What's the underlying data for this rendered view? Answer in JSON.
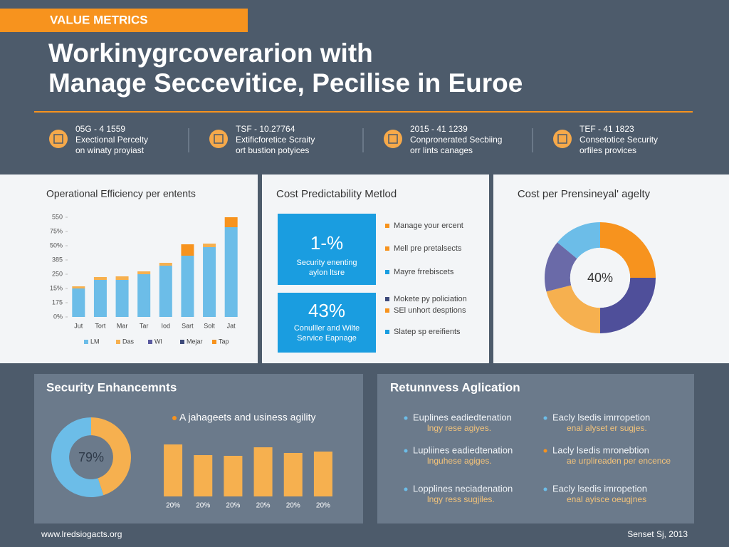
{
  "header": {
    "tag": "VALUE METRICS",
    "title": [
      "Workinygrcoverarion with",
      "Manage Seccevitice, Pecilise in Euroe"
    ]
  },
  "stats": [
    {
      "lines": [
        "05G - 4 1559",
        "Exectional Percelty",
        "on winaty proyiast"
      ]
    },
    {
      "lines": [
        "TSF - 10.27764",
        "Extificforetice Scraity",
        "ort bustion potyices"
      ]
    },
    {
      "lines": [
        "2015 - 41 1239",
        "Conpronerated Secbiing",
        "orr lints canages"
      ]
    },
    {
      "lines": [
        "TEF - 41 1823",
        "Consetotice Security",
        "orfiles provices"
      ]
    }
  ],
  "chart_data": [
    {
      "type": "bar",
      "stacked": true,
      "title": "Operational Efficiency per entents",
      "categories": [
        "Jut",
        "Tort",
        "Mar",
        "Tar",
        "Iod",
        "Sart",
        "Solt",
        "Jat"
      ],
      "ylim": [
        0,
        7.5
      ],
      "yticks": [
        {
          "value": 0,
          "label": "0%"
        },
        {
          "value": 1,
          "label": "175"
        },
        {
          "value": 2,
          "label": "15%"
        },
        {
          "value": 3,
          "label": "250"
        },
        {
          "value": 4,
          "label": "385"
        },
        {
          "value": 5,
          "label": "50%"
        },
        {
          "value": 6,
          "label": "75%"
        },
        {
          "value": 7,
          "label": "550"
        }
      ],
      "series": [
        {
          "name": "LM",
          "color": "#6cbde8",
          "values": [
            2.0,
            2.6,
            2.6,
            3.0,
            3.6,
            4.3,
            4.9,
            6.3
          ]
        },
        {
          "name": "Das",
          "color": "#f6b04f",
          "values": [
            0.15,
            0.2,
            0.25,
            0.2,
            0.2,
            null,
            0.25,
            null
          ]
        },
        {
          "name": "Wl",
          "color": "#5a5aa0",
          "values": [
            null,
            null,
            null,
            null,
            null,
            null,
            null,
            null
          ]
        },
        {
          "name": "Mejar",
          "color": "#3d4a7a",
          "values": [
            null,
            null,
            null,
            null,
            null,
            null,
            null,
            null
          ]
        },
        {
          "name": "Tap",
          "color": "#f7931e",
          "values": [
            null,
            null,
            null,
            null,
            null,
            0.8,
            null,
            0.7
          ]
        }
      ]
    },
    {
      "type": "pie",
      "title": "Cost per Prensineyal' agelty",
      "center_label": "40%",
      "inner_ratio": 0.54,
      "values": [
        25,
        25,
        21,
        15,
        14
      ],
      "colors": [
        "#f7931e",
        "#4f4f9a",
        "#f6b04f",
        "#6a6aa8",
        "#6cbde8"
      ]
    },
    {
      "type": "pie",
      "title": "Security Enhancemnts",
      "center_label": "79%",
      "inner_ratio": 0.55,
      "values": [
        45,
        55
      ],
      "colors": [
        "#f6b04f",
        "#6cbde8"
      ]
    },
    {
      "type": "bar",
      "title": "A jahageets and usiness agility",
      "categories": [
        "20%",
        "20%",
        "20%",
        "20%",
        "20%",
        "20%"
      ],
      "values": [
        73,
        58,
        57,
        69,
        61,
        63
      ],
      "ylim": [
        0,
        80
      ],
      "color": "#f6b04f"
    }
  ],
  "cost_panel": {
    "title": "Cost Predictability Metlod",
    "boxes": [
      {
        "big": "1-%",
        "lines": [
          "Security enenting",
          "aylon ltsre"
        ]
      },
      {
        "big": "43%",
        "lines": [
          "Conulller and Wilte",
          "Service Eapnage"
        ]
      }
    ],
    "items": [
      {
        "text": "Manage your ercent",
        "color": "#f7931e"
      },
      {
        "text": "Mell pre pretalsects",
        "color": "#f7931e"
      },
      {
        "text": "Mayre frrebiscets",
        "color": "#1a9de0"
      },
      {
        "text": "Mokete py policiation",
        "color": "#3d4a7a"
      },
      {
        "text": "SEl unhort desptions",
        "color": "#f7931e"
      },
      {
        "text": "Slatep sp ereifients",
        "color": "#1a9de0"
      }
    ]
  },
  "retention_panel": {
    "title": "Retunnvess Aglication",
    "items": [
      {
        "lines": [
          "Euplines eadiedtenation",
          "lngy rese agiyes."
        ],
        "color": "#6cbde8"
      },
      {
        "lines": [
          "Eacly lsedis imrropetion",
          "enal alyset er sugjes."
        ],
        "color": "#6cbde8"
      },
      {
        "lines": [
          "Lupliines eadiedtenation",
          "lnguhese agiges."
        ],
        "color": "#6cbde8"
      },
      {
        "lines": [
          "Lacly lsedis mronebtion",
          "ae urplireaden per encence"
        ],
        "color": "#f7931e"
      },
      {
        "lines": [
          "Lopplines neciadenation",
          "lngy ress sugjiles."
        ],
        "color": "#6cbde8"
      },
      {
        "lines": [
          "Eacly lsedis imropetion",
          "enal ayisce oeugjnes"
        ],
        "color": "#6cbde8"
      }
    ]
  },
  "footer": {
    "url": "www.lredsiogacts.org",
    "date": "Senset Sj, 2013"
  }
}
